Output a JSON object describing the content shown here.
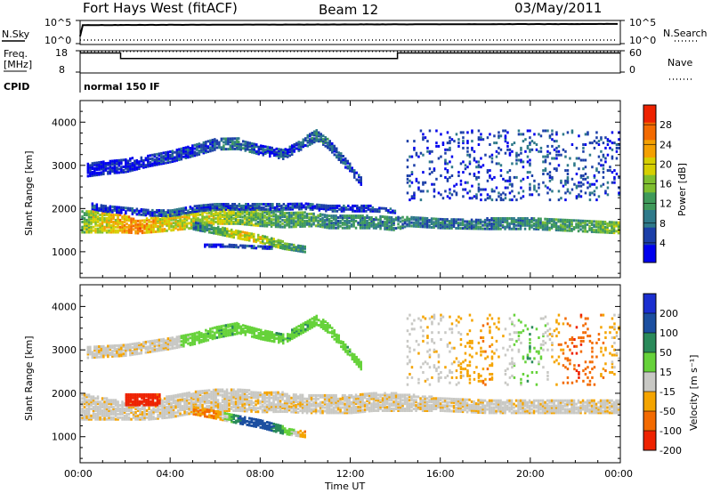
{
  "header": {
    "station": "Fort Hays West (fitACF)",
    "beam": "Beam 12",
    "date": "03/May/2011"
  },
  "status_panels": {
    "nsky_label": "N.Sky",
    "nsearch_label": "N.Search",
    "freq_label_line1": "Freq.",
    "freq_label_line2": "[MHz]",
    "nave_label": "Nave",
    "cpid_label": "CPID",
    "cpid_value": "normal 150 IF",
    "noise_ticks": [
      "10^5",
      "10^0"
    ],
    "noise_right_ticks": [
      "10^5",
      "10^0"
    ],
    "freq_ticks": [
      "18",
      "8"
    ],
    "nave_ticks": [
      "60",
      "0"
    ]
  },
  "chart_data": [
    {
      "type": "line",
      "name": "noise",
      "x_range_hours": [
        0,
        24
      ],
      "yscale": "log",
      "ylim": [
        1,
        100000
      ],
      "series": [
        {
          "name": "N.Sky",
          "style": "solid",
          "x": [
            0,
            0.05,
            0.1,
            24
          ],
          "values": [
            30,
            30,
            30000,
            60000
          ]
        },
        {
          "name": "N.Search",
          "style": "dotted",
          "x": [
            0,
            24
          ],
          "values": [
            3,
            3
          ]
        }
      ]
    },
    {
      "type": "line",
      "name": "frequency-nave",
      "x_range_hours": [
        0,
        24
      ],
      "ylim": [
        8,
        18
      ],
      "series": [
        {
          "name": "Freq.",
          "style": "solid",
          "x": [
            0,
            1.8,
            1.8,
            14.1,
            14.1,
            24
          ],
          "values": [
            17,
            17,
            14.5,
            14.5,
            17,
            17
          ]
        },
        {
          "name": "Nave",
          "style": "dotted",
          "x": [
            0,
            24
          ],
          "values": [
            17.8,
            17.8
          ]
        }
      ]
    },
    {
      "type": "heatmap",
      "name": "power",
      "x": [
        "00:00",
        "04:00",
        "08:00",
        "12:00",
        "16:00",
        "20:00",
        "00:00"
      ],
      "x_range_hours": [
        0,
        24
      ],
      "ylabel": "Slant Range [km]",
      "yticks": [
        1000,
        2000,
        3000,
        4000
      ],
      "ylim": [
        400,
        4500
      ],
      "colorbar": {
        "label": "Power [dB]",
        "ticks": [
          4,
          8,
          12,
          16,
          20,
          24,
          28
        ],
        "range": [
          0,
          32
        ],
        "colors": [
          "#0000ee",
          "#1c3fa8",
          "#2f7a8a",
          "#3f9a5a",
          "#7fbf2f",
          "#d6cf00",
          "#f4a000",
          "#f36a00",
          "#ee2200"
        ]
      },
      "bands": [
        {
          "x": [
            0.05,
            0.5,
            2,
            2.5,
            3.5,
            5,
            6,
            7,
            8,
            9,
            10.5,
            11,
            12,
            13,
            14,
            14.5,
            16,
            18,
            20,
            22,
            24
          ],
          "center": [
            1700,
            1700,
            1650,
            1580,
            1650,
            1750,
            1850,
            1850,
            1800,
            1750,
            1750,
            1700,
            1700,
            1700,
            1650,
            1700,
            1650,
            1650,
            1650,
            1600,
            1550
          ],
          "halfwidth": [
            250,
            250,
            200,
            150,
            180,
            200,
            200,
            200,
            200,
            180,
            150,
            150,
            150,
            150,
            150,
            100,
            100,
            120,
            120,
            120,
            120
          ],
          "level": [
            14,
            18,
            22,
            26,
            20,
            18,
            18,
            16,
            14,
            12,
            12,
            10,
            10,
            10,
            10,
            8,
            8,
            9,
            10,
            12,
            16
          ]
        },
        {
          "x": [
            0.5,
            1,
            2,
            3,
            4,
            5,
            6,
            7,
            8,
            9,
            10,
            11,
            12,
            13,
            14
          ],
          "center": [
            2050,
            2000,
            1950,
            1900,
            1900,
            2000,
            2050,
            2050,
            2050,
            2050,
            2050,
            2000,
            2000,
            2000,
            1950
          ],
          "halfwidth": [
            60,
            60,
            60,
            60,
            70,
            70,
            70,
            70,
            70,
            70,
            60,
            60,
            60,
            60,
            50
          ],
          "level": [
            4,
            4,
            5,
            5,
            6,
            6,
            6,
            6,
            6,
            5,
            5,
            4,
            4,
            4,
            4
          ]
        },
        {
          "x": [
            0.3,
            1,
            2,
            3,
            4,
            5,
            6,
            7
          ],
          "center": [
            2900,
            2950,
            3000,
            3100,
            3200,
            3350,
            3500,
            3500
          ],
          "halfwidth": [
            150,
            150,
            150,
            120,
            120,
            130,
            130,
            120
          ],
          "level": [
            3,
            3,
            3,
            4,
            4,
            5,
            7,
            8
          ]
        },
        {
          "x": [
            7,
            8,
            9,
            10,
            10.5,
            11,
            11.5,
            12,
            12.5
          ],
          "center": [
            3500,
            3350,
            3250,
            3550,
            3700,
            3500,
            3200,
            2900,
            2600
          ],
          "halfwidth": [
            120,
            100,
            100,
            120,
            120,
            110,
            100,
            100,
            80
          ],
          "level": [
            8,
            6,
            5,
            6,
            8,
            7,
            6,
            5,
            4
          ]
        },
        {
          "x": [
            5,
            6,
            7,
            8,
            9,
            10
          ],
          "center": [
            1600,
            1500,
            1400,
            1300,
            1150,
            1050
          ],
          "halfwidth": [
            80,
            80,
            90,
            90,
            80,
            60
          ],
          "level": [
            8,
            14,
            20,
            18,
            14,
            10
          ]
        },
        {
          "x": [
            5.5,
            6.5,
            7.5,
            8.5
          ],
          "center": [
            1150,
            1150,
            1120,
            1100
          ],
          "halfwidth": [
            30,
            30,
            30,
            30
          ],
          "level": [
            4,
            4,
            5,
            5
          ]
        },
        {
          "x": [
            14.5,
            16,
            18,
            20,
            22,
            24
          ],
          "center": [
            3000,
            3000,
            3000,
            3000,
            3000,
            3000
          ],
          "halfwidth": [
            800,
            800,
            800,
            800,
            800,
            800
          ],
          "level": [
            4,
            4,
            5,
            6,
            6,
            5
          ],
          "density": 0.15
        }
      ]
    },
    {
      "type": "heatmap",
      "name": "velocity",
      "x": [
        "00:00",
        "04:00",
        "08:00",
        "12:00",
        "16:00",
        "20:00",
        "00:00"
      ],
      "x_range_hours": [
        0,
        24
      ],
      "ylabel": "Slant Range [km]",
      "xlabel": "Time UT",
      "yticks": [
        1000,
        2000,
        3000,
        4000
      ],
      "ylim": [
        400,
        4500
      ],
      "colorbar": {
        "label": "Velocity [m s⁻¹]",
        "ticks": [
          "200",
          "100",
          "50",
          "15",
          "-15",
          "-50",
          "-100",
          "-200"
        ],
        "colors": [
          "#1b2fd0",
          "#1c4fa0",
          "#2a8a5a",
          "#66d23a",
          "#c8c8c4",
          "#f4a400",
          "#f36a00",
          "#ee2200"
        ]
      },
      "bands": [
        {
          "x": [
            0.05,
            1,
            2,
            3,
            4,
            5,
            6,
            7,
            8,
            9,
            10,
            11,
            12,
            13,
            14,
            16,
            18,
            20,
            22,
            24
          ],
          "center": [
            1700,
            1650,
            1600,
            1600,
            1700,
            1800,
            1850,
            1850,
            1800,
            1800,
            1750,
            1750,
            1750,
            1800,
            1800,
            1750,
            1700,
            1700,
            1700,
            1700
          ],
          "halfwidth": [
            300,
            250,
            200,
            200,
            250,
            250,
            250,
            250,
            230,
            220,
            200,
            200,
            200,
            200,
            200,
            150,
            150,
            150,
            150,
            150
          ],
          "level": [
            -5,
            -5,
            -5,
            -5,
            -5,
            -5,
            -5,
            -5,
            -5,
            -5,
            -5,
            -5,
            -5,
            -5,
            -5,
            -5,
            -5,
            -5,
            -5,
            -5
          ]
        },
        {
          "x": [
            2,
            2.5,
            3,
            3.5
          ],
          "center": [
            1850,
            1850,
            1850,
            1850
          ],
          "halfwidth": [
            120,
            120,
            120,
            120
          ],
          "level": [
            -200,
            -200,
            -150,
            -100
          ]
        },
        {
          "x": [
            5,
            6,
            7,
            8,
            9,
            10
          ],
          "center": [
            1600,
            1500,
            1400,
            1300,
            1150,
            1050
          ],
          "halfwidth": [
            80,
            80,
            90,
            90,
            80,
            60
          ],
          "level": [
            -50,
            -50,
            100,
            150,
            50,
            -50
          ]
        },
        {
          "x": [
            0.3,
            2,
            4,
            5,
            6,
            7
          ],
          "center": [
            2950,
            3000,
            3150,
            3250,
            3400,
            3500
          ],
          "halfwidth": [
            130,
            130,
            120,
            120,
            120,
            120
          ],
          "level": [
            -5,
            -5,
            -5,
            30,
            40,
            40
          ]
        },
        {
          "x": [
            7,
            8,
            9,
            10,
            10.5,
            11,
            11.5,
            12,
            12.5
          ],
          "center": [
            3500,
            3350,
            3250,
            3550,
            3700,
            3500,
            3200,
            2900,
            2600
          ],
          "halfwidth": [
            110,
            100,
            100,
            110,
            110,
            110,
            100,
            90,
            80
          ],
          "level": [
            30,
            30,
            40,
            40,
            30,
            40,
            30,
            40,
            30
          ]
        },
        {
          "x": [
            14.5,
            16,
            18,
            20,
            22,
            24
          ],
          "center": [
            3000,
            3000,
            3000,
            3000,
            3000,
            3000
          ],
          "halfwidth": [
            800,
            800,
            800,
            800,
            800,
            800
          ],
          "level": [
            -5,
            -5,
            -50,
            50,
            -100,
            -5
          ],
          "density": 0.12
        }
      ]
    }
  ]
}
